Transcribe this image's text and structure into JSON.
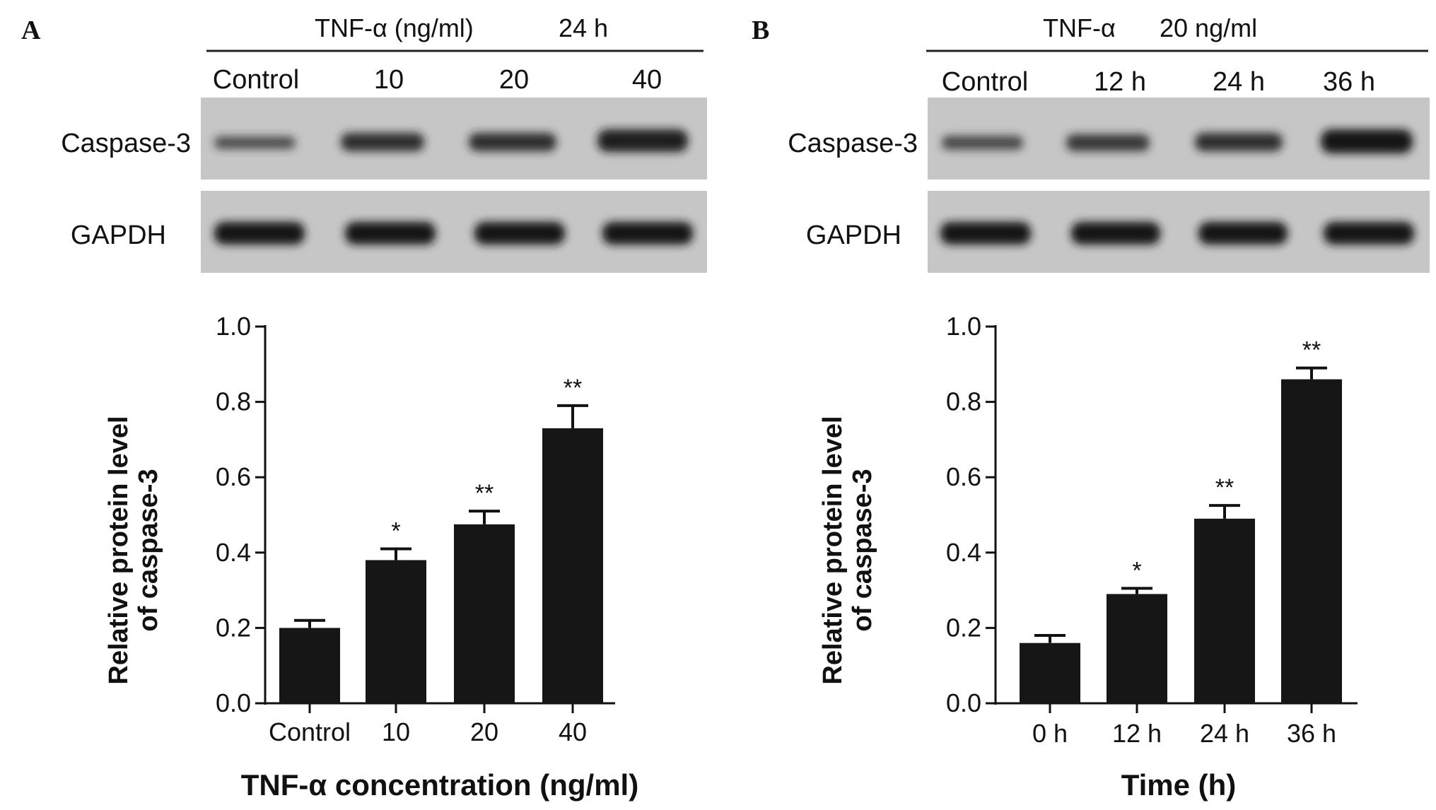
{
  "panels": [
    {
      "letter": "A",
      "header": {
        "treatment": "TNF-α (ng/ml)",
        "condition": "24 h"
      },
      "lanes": [
        "Control",
        "10",
        "20",
        "40"
      ],
      "blots": [
        "Caspase-3",
        "GAPDH"
      ]
    },
    {
      "letter": "B",
      "header": {
        "treatment": "TNF-α",
        "condition": "20 ng/ml"
      },
      "lanes": [
        "Control",
        "12 h",
        "24 h",
        "36 h"
      ],
      "blots": [
        "Caspase-3",
        "GAPDH"
      ]
    }
  ],
  "chart_data": [
    {
      "type": "bar",
      "categories": [
        "Control",
        "10",
        "20",
        "40"
      ],
      "values": [
        0.2,
        0.38,
        0.475,
        0.73
      ],
      "errors": [
        0.02,
        0.03,
        0.035,
        0.06
      ],
      "significance": [
        "",
        "*",
        "**",
        "**"
      ],
      "ylim": [
        0,
        1.0
      ],
      "yticks": [
        "0.0",
        "0.2",
        "0.4",
        "0.6",
        "0.8",
        "1.0"
      ],
      "ylabel_line1": "Relative protein level",
      "ylabel_line2": "of caspase-3",
      "xlabel": "TNF-α concentration (ng/ml)"
    },
    {
      "type": "bar",
      "categories": [
        "0 h",
        "12 h",
        "24 h",
        "36 h"
      ],
      "values": [
        0.16,
        0.29,
        0.49,
        0.86
      ],
      "errors": [
        0.02,
        0.015,
        0.035,
        0.03
      ],
      "significance": [
        "",
        "*",
        "**",
        "**"
      ],
      "ylim": [
        0,
        1.0
      ],
      "yticks": [
        "0.0",
        "0.2",
        "0.4",
        "0.6",
        "0.8",
        "1.0"
      ],
      "ylabel_line1": "Relative protein level",
      "ylabel_line2": "of caspase-3",
      "xlabel": "Time (h)"
    }
  ],
  "colors": {
    "bar": "#161616",
    "blot_bg": "#c9c9c9",
    "band": "#1a1a1a"
  }
}
